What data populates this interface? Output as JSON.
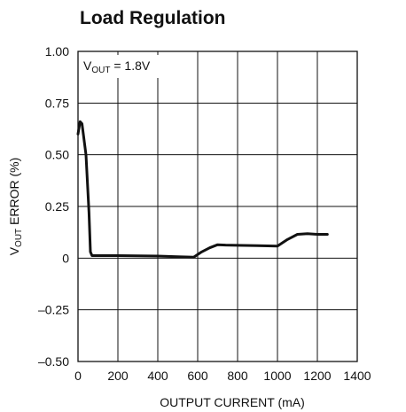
{
  "chart_data": {
    "type": "line",
    "title": "Load Regulation",
    "xlabel": "OUTPUT CURRENT (mA)",
    "ylabel": {
      "prefix": "V",
      "subscript": "OUT",
      "suffix": " ERROR (%)"
    },
    "annotation": {
      "prefix": "V",
      "subscript": "OUT",
      "suffix": " = 1.8V"
    },
    "xlim": [
      0,
      1400
    ],
    "ylim": [
      -0.5,
      1.0
    ],
    "x_ticks": [
      0,
      200,
      400,
      600,
      800,
      1000,
      1200,
      1400
    ],
    "x_tick_labels": [
      "0",
      "200",
      "400",
      "600",
      "800",
      "1000",
      "1200",
      "1400"
    ],
    "y_ticks": [
      -0.5,
      -0.25,
      0,
      0.25,
      0.5,
      0.75,
      1.0
    ],
    "y_tick_labels": [
      "–0.50",
      "–0.25",
      "0",
      "0.25",
      "0.50",
      "0.75",
      "1.00"
    ],
    "grid": true,
    "colors": {
      "line": "#111111",
      "grid": "#111111"
    },
    "series": [
      {
        "x": [
          0,
          10,
          20,
          40,
          55,
          62,
          70,
          200,
          300,
          400,
          500,
          580,
          620,
          660,
          700,
          740,
          800,
          900,
          1000,
          1050,
          1100,
          1150,
          1200,
          1250
        ],
        "y": [
          0.6,
          0.66,
          0.65,
          0.5,
          0.22,
          0.03,
          0.012,
          0.012,
          0.011,
          0.01,
          0.007,
          0.005,
          0.03,
          0.05,
          0.065,
          0.063,
          0.062,
          0.06,
          0.058,
          0.09,
          0.115,
          0.118,
          0.115,
          0.115
        ]
      }
    ]
  }
}
